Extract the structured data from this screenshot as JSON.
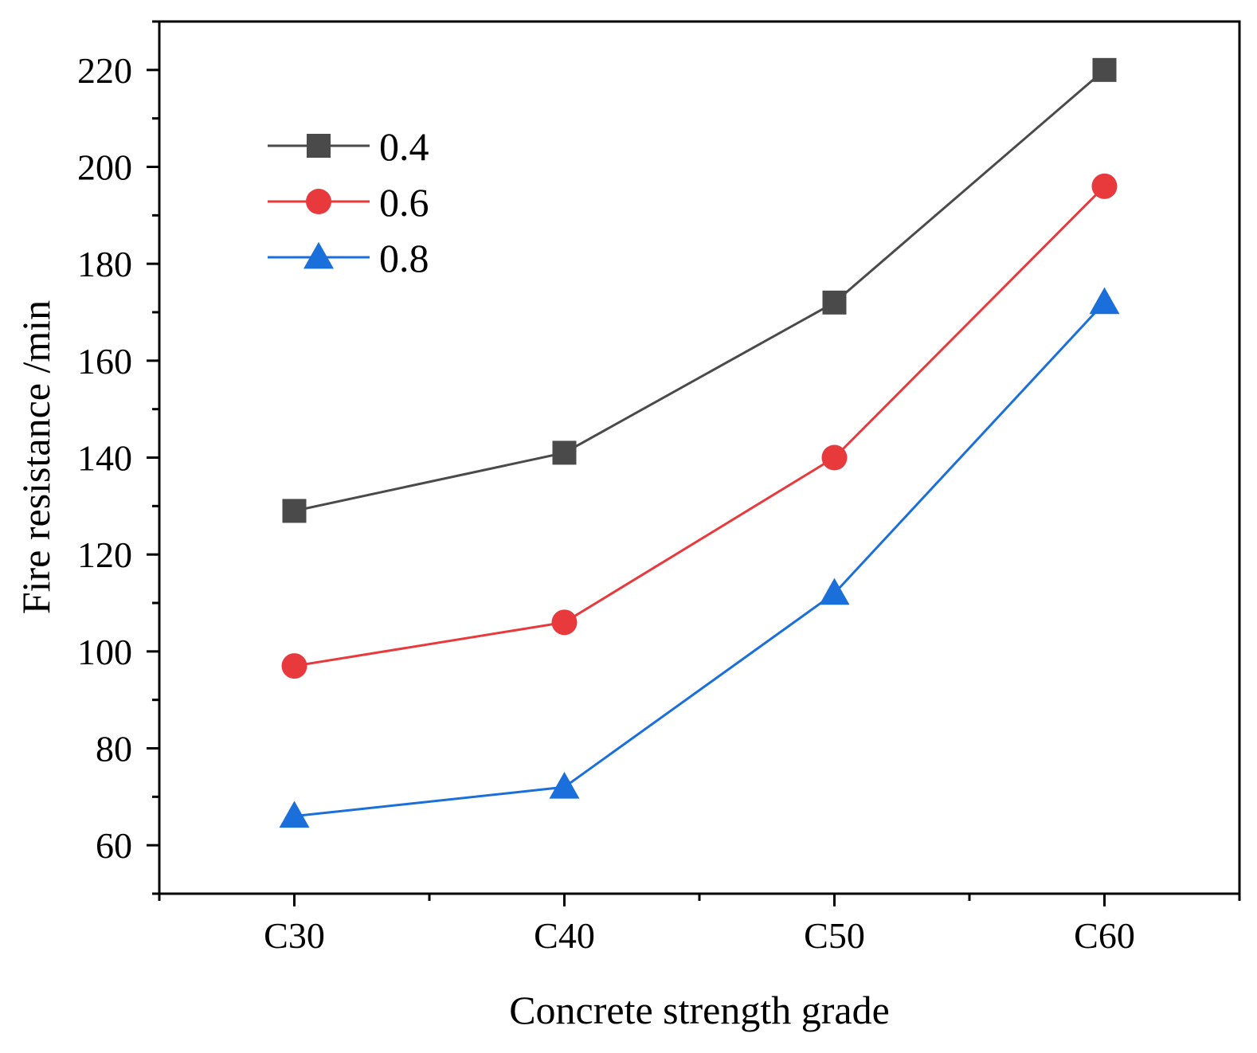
{
  "chart_data": {
    "type": "line",
    "title": "",
    "xlabel": "Concrete strength grade",
    "ylabel": "Fire resistance /min",
    "categories": [
      "C30",
      "C40",
      "C50",
      "C60"
    ],
    "ylim": [
      50,
      230
    ],
    "yticks": [
      60,
      80,
      100,
      120,
      140,
      160,
      180,
      200,
      220
    ],
    "grid": false,
    "legend_position": "top-left",
    "series": [
      {
        "name": "0.4",
        "values": [
          129,
          141,
          172,
          220
        ],
        "color": "#4a4a4a",
        "marker": "square"
      },
      {
        "name": "0.6",
        "values": [
          97,
          106,
          140,
          196
        ],
        "color": "#e8393d",
        "marker": "circle"
      },
      {
        "name": "0.8",
        "values": [
          66,
          72,
          112,
          172
        ],
        "color": "#1a6fdb",
        "marker": "triangle"
      }
    ]
  }
}
